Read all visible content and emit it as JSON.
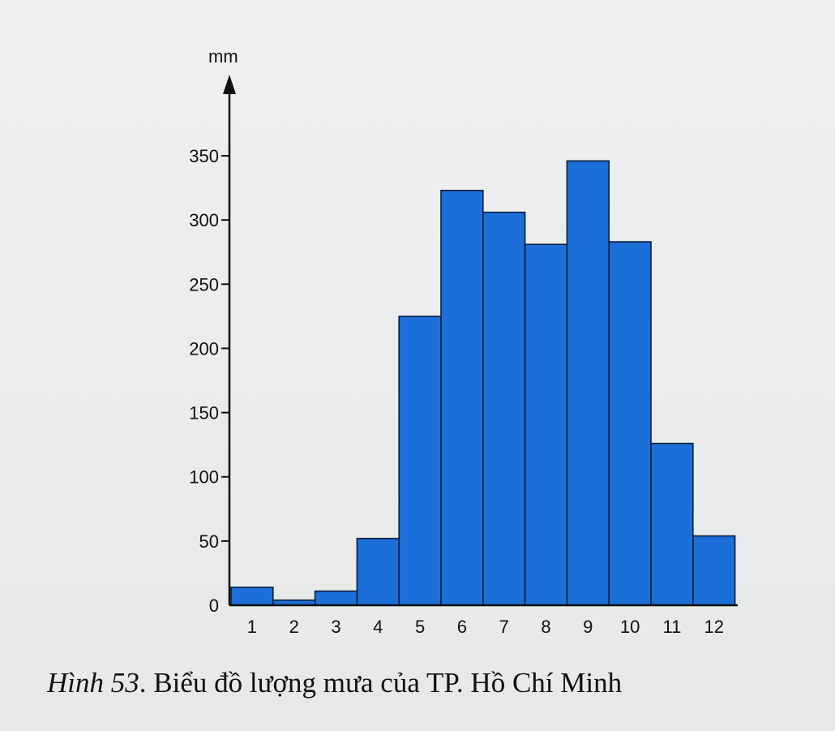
{
  "caption": {
    "figure_label": "Hình 53",
    "text": ". Biểu đồ lượng mưa của TP. Hồ Chí Minh"
  },
  "chart_data": {
    "type": "bar",
    "ylabel": "mm",
    "categories": [
      "1",
      "2",
      "3",
      "4",
      "5",
      "6",
      "7",
      "8",
      "9",
      "10",
      "11",
      "12"
    ],
    "values": [
      14,
      4,
      11,
      52,
      225,
      323,
      306,
      281,
      346,
      283,
      126,
      54
    ],
    "ylim": [
      0,
      350
    ],
    "yticks": [
      0,
      50,
      100,
      150,
      200,
      250,
      300,
      350
    ],
    "bar_color": "#1c6fd8",
    "grid": false
  }
}
